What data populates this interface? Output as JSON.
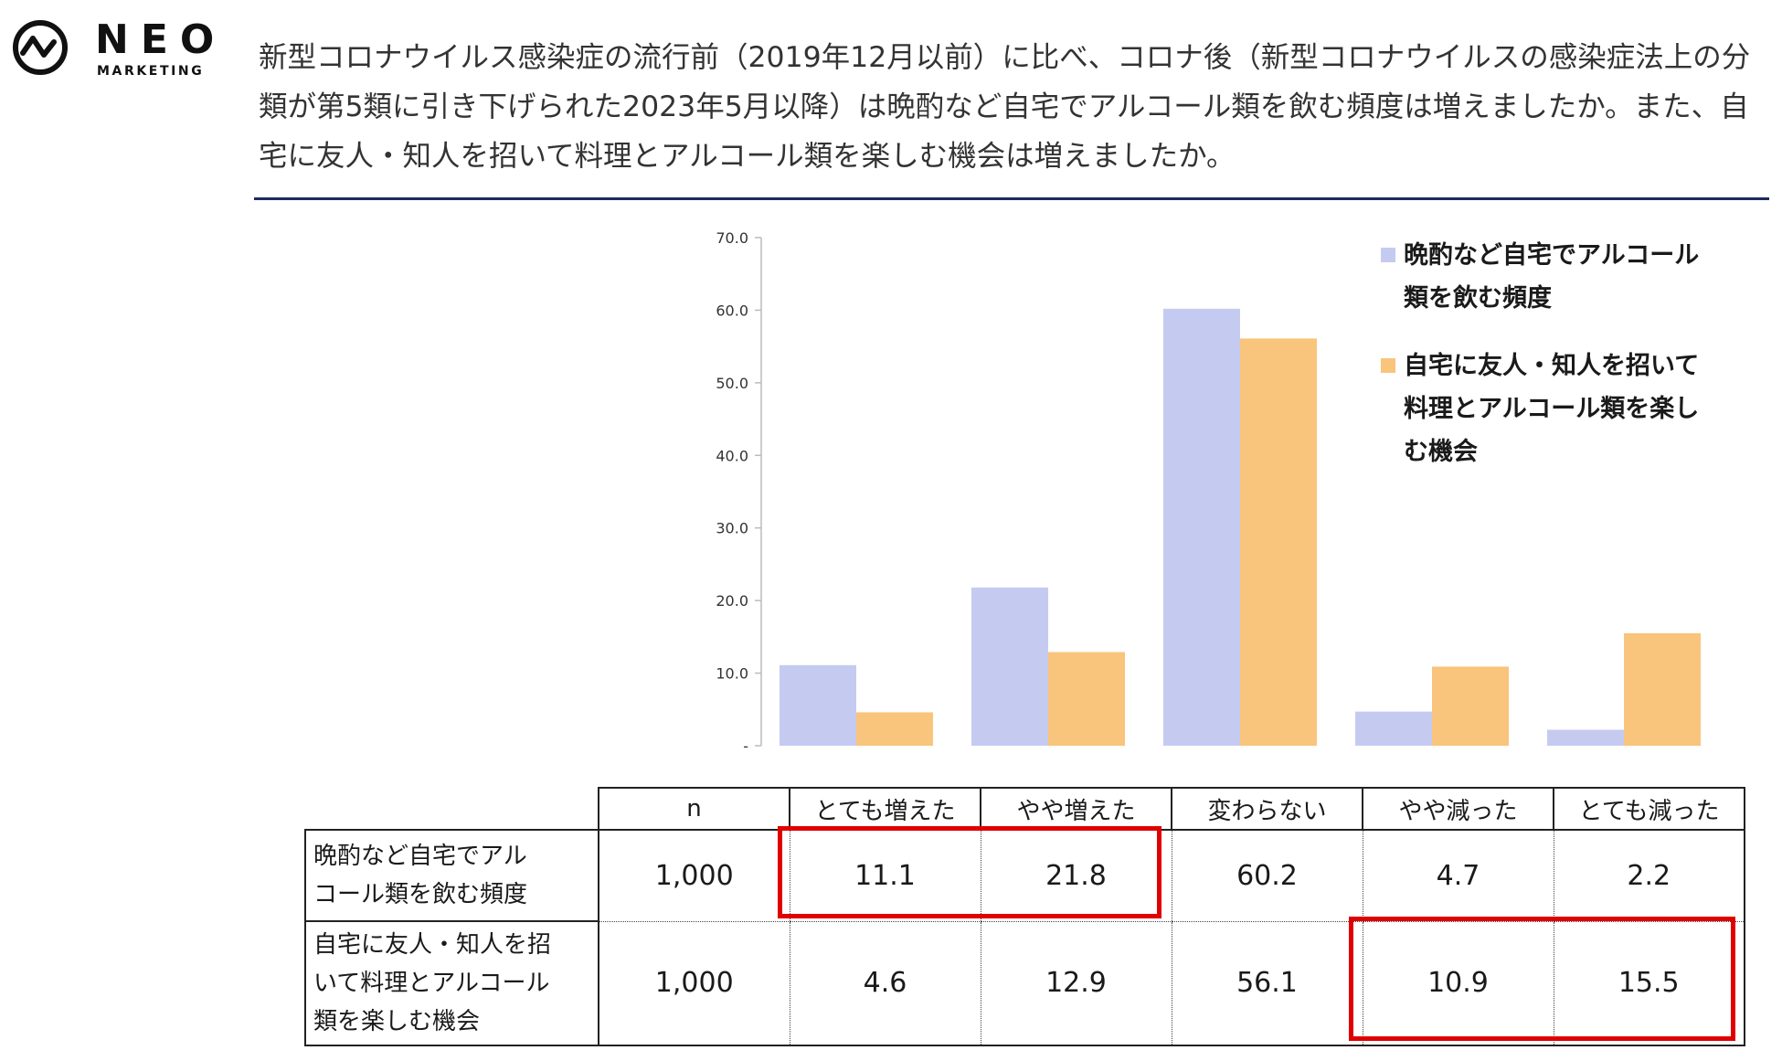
{
  "logo": {
    "name": "NEO",
    "sub": "MARKETING"
  },
  "question": "新型コロナウイルス感染症の流行前（2019年12月以前）に比べ、コロナ後（新型コロナウイルスの感染症法上の分類が第5類に引き下げられた2023年5月以降）は晩酌など自宅でアルコール類を飲む頻度は増えましたか。また、自宅に友人・知人を招いて料理とアルコール類を楽しむ機会は増えましたか。",
  "colors": {
    "series1": "#c5cbf0",
    "series2": "#f9c47b",
    "rule": "#1c2a5e",
    "highlight": "#e00000"
  },
  "chart_data": {
    "type": "bar",
    "categories": [
      "とても増えた",
      "やや増えた",
      "変わらない",
      "やや減った",
      "とても減った"
    ],
    "series": [
      {
        "name": "晩酌など自宅でアルコール類を飲む頻度",
        "values": [
          11.1,
          21.8,
          60.2,
          4.7,
          2.2
        ]
      },
      {
        "name": "自宅に友人・知人を招いて料理とアルコール類を楽しむ機会",
        "values": [
          4.6,
          12.9,
          56.1,
          10.9,
          15.5
        ]
      }
    ],
    "ylim": [
      0,
      70
    ],
    "yticks": [
      "-",
      "10.0",
      "20.0",
      "30.0",
      "40.0",
      "50.0",
      "60.0",
      "70.0"
    ],
    "grid": false,
    "legend_position": "top-right",
    "legend": [
      {
        "lines": [
          "晩酌など自宅でアルコール",
          "類を飲む頻度"
        ]
      },
      {
        "lines": [
          "自宅に友人・知人を招いて",
          "料理とアルコール類を楽し",
          "む機会"
        ]
      }
    ]
  },
  "table": {
    "headers": [
      "n",
      "とても増えた",
      "やや増えた",
      "変わらない",
      "やや減った",
      "とても減った"
    ],
    "rows": [
      {
        "label_lines": [
          "晩酌など自宅でアル",
          "コール類を飲む頻度"
        ],
        "values": [
          "1,000",
          "11.1",
          "21.8",
          "60.2",
          "4.7",
          "2.2"
        ]
      },
      {
        "label_lines": [
          "自宅に友人・知人を招",
          "いて料理とアルコール",
          "類を楽しむ機会"
        ],
        "values": [
          "1,000",
          "4.6",
          "12.9",
          "56.1",
          "10.9",
          "15.5"
        ]
      }
    ]
  }
}
